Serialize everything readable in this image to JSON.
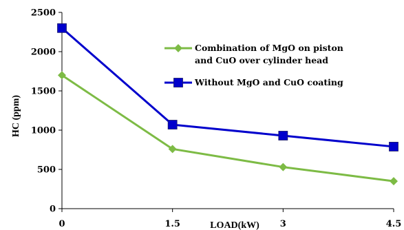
{
  "chart_data": {
    "type": "line",
    "title": "",
    "xlabel": "LOAD(kW)",
    "ylabel": "HC (ppm)",
    "x": [
      0,
      1.5,
      3,
      4.5
    ],
    "x_tick_labels": [
      "0",
      "1.5",
      "3",
      "4.5"
    ],
    "y_tick_labels": [
      "0",
      "500",
      "1000",
      "1500",
      "2000",
      "2500"
    ],
    "xlim": [
      0,
      4.5
    ],
    "ylim": [
      0,
      2500
    ],
    "grid": false,
    "legend_position": "top-right",
    "series": [
      {
        "name": "Combination of MgO on piston and CuO over cylinder head",
        "legend_lines": [
          "Combination of MgO on piston",
          "and CuO over cylinder head"
        ],
        "values": [
          1700,
          760,
          530,
          350
        ],
        "color": "#7dbb45",
        "marker": "diamond"
      },
      {
        "name": "Without MgO and CuO coating",
        "legend_lines": [
          "Without MgO and CuO coating"
        ],
        "values": [
          2300,
          1070,
          930,
          790
        ],
        "color": "#0000cc",
        "marker": "square"
      }
    ]
  }
}
